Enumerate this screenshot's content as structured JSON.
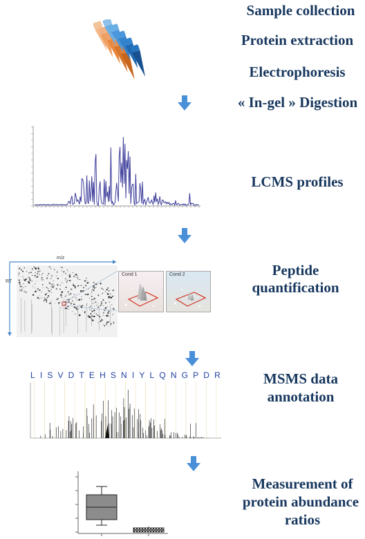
{
  "steps": {
    "s1": "Sample collection",
    "s2": "Protein extraction",
    "s3": "Electrophoresis",
    "s4": "« In-gel » Digestion",
    "s5": "LCMS profiles",
    "s6_l1": "Peptide",
    "s6_l2": "quantification",
    "s7_l1": "MSMS data",
    "s7_l2": "annotation",
    "s8_l1": "Measurement of",
    "s8_l2": "protein abundance",
    "s8_l3": "ratios"
  },
  "map": {
    "x_axis": "m/z",
    "y_axis": "RT",
    "cond1": "Cond 1",
    "cond2": "Cond 2"
  },
  "sequence": [
    "L",
    "I",
    "S",
    "V",
    "D",
    "T",
    "E",
    "H",
    "S",
    "N",
    "I",
    "Y",
    "L",
    "Q",
    "N",
    "G",
    "P",
    "D",
    "R"
  ],
  "colors": {
    "label": "#17375e",
    "arrow": "#4a90d9",
    "spectrum": "#3a3a9a",
    "sequence": "#1f3fa0"
  }
}
